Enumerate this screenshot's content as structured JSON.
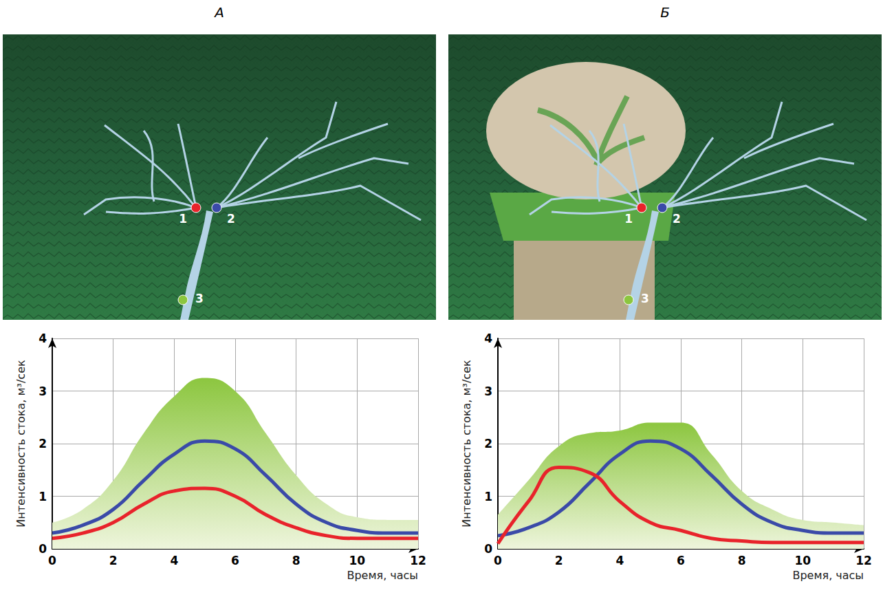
{
  "chart_data": [
    {
      "type": "line",
      "title": "А",
      "annotations": [
        "1",
        "2",
        "3"
      ],
      "x_label": "Время, часы",
      "y_label": "Интенсивность стока, м³/сек",
      "x": [
        0,
        1,
        2,
        3,
        4,
        5,
        6,
        7,
        8,
        9,
        10,
        11,
        12
      ],
      "series": [
        {
          "type": "line",
          "color": "#e8232b",
          "values": [
            0.2,
            0.3,
            0.5,
            0.85,
            1.1,
            1.15,
            1.0,
            0.65,
            0.4,
            0.25,
            0.2,
            0.2,
            0.2
          ]
        },
        {
          "type": "line",
          "color": "#3a4aa8",
          "values": [
            0.3,
            0.45,
            0.75,
            1.3,
            1.8,
            2.05,
            1.9,
            1.4,
            0.85,
            0.5,
            0.35,
            0.3,
            0.3
          ]
        },
        {
          "type": "area",
          "color": "#8cc63f",
          "values": [
            0.5,
            0.75,
            1.3,
            2.2,
            2.9,
            3.25,
            3.0,
            2.2,
            1.4,
            0.85,
            0.6,
            0.55,
            0.55
          ]
        }
      ],
      "xlim": [
        0,
        12
      ],
      "xticks": [
        0,
        2,
        4,
        6,
        8,
        10,
        12
      ],
      "ylim": [
        0,
        4
      ],
      "yticks": [
        0,
        1,
        2,
        3,
        4
      ],
      "grid": true
    },
    {
      "type": "line",
      "title": "Б",
      "annotations": [
        "1",
        "2",
        "3"
      ],
      "x_label": "Время, часы",
      "y_label": "Интенсивность стока, м³/сек",
      "x": [
        0,
        1,
        2,
        3,
        4,
        5,
        6,
        7,
        8,
        9,
        10,
        11,
        12
      ],
      "series": [
        {
          "type": "line",
          "color": "#e8232b",
          "values": [
            0.1,
            0.9,
            1.55,
            1.45,
            0.9,
            0.5,
            0.35,
            0.2,
            0.15,
            0.12,
            0.12,
            0.12,
            0.12
          ]
        },
        {
          "type": "line",
          "color": "#3a4aa8",
          "values": [
            0.25,
            0.4,
            0.7,
            1.25,
            1.8,
            2.05,
            1.9,
            1.4,
            0.85,
            0.5,
            0.35,
            0.3,
            0.3
          ]
        },
        {
          "type": "area",
          "color": "#8cc63f",
          "values": [
            0.65,
            1.3,
            1.95,
            2.2,
            2.25,
            2.4,
            2.4,
            1.8,
            1.1,
            0.75,
            0.55,
            0.5,
            0.45
          ]
        }
      ],
      "xlim": [
        0,
        12
      ],
      "xticks": [
        0,
        2,
        4,
        6,
        8,
        10,
        12
      ],
      "ylim": [
        0,
        4
      ],
      "yticks": [
        0,
        1,
        2,
        3,
        4
      ],
      "grid": true
    }
  ]
}
